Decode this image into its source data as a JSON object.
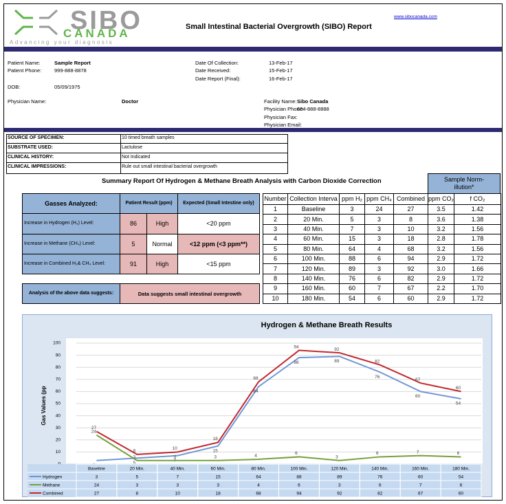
{
  "header": {
    "logo_name": "SIBO",
    "logo_subname": "CANADA",
    "tagline": "Advancing your diagnosis",
    "title": "Small Intestinal Bacterial Overgrowth (SIBO) Report",
    "url": "www.sibocanada.com"
  },
  "patient": {
    "name": {
      "label": "Patient Name:",
      "value": "Sample Report"
    },
    "phone": {
      "label": "Patient Phone:",
      "value": "999-888-8878"
    },
    "dob": {
      "label": "DOB:",
      "value": "05/09/1975"
    },
    "physician": {
      "label": "Physician Name:",
      "value": "Doctor"
    },
    "collection": {
      "label": "Date Of Collection:",
      "value": "13-Feb-17"
    },
    "received": {
      "label": "Date Received:",
      "value": "15-Feb-17"
    },
    "report": {
      "label": "Date Report (Final):",
      "value": "16-Feb-17"
    },
    "facility": {
      "label": "Facility Name:",
      "value": "Sibo Canada"
    },
    "physician_phone": {
      "label": "Physician Phone:",
      "value": "604-888-8888"
    },
    "physician_fax": {
      "label": "Physician Fax:"
    },
    "physician_email": {
      "label": "Physician Email:"
    }
  },
  "specimen": {
    "rows": [
      {
        "label": "SOURCE OF SPECIMEN:",
        "value": "10 timed breath samples"
      },
      {
        "label": "SUBSTRATE USED:",
        "value": "Lactulose"
      },
      {
        "label": "CLINICAL HISTORY:",
        "value": "Not Indicated"
      },
      {
        "label": "CLINICAL IMPRESSIONS:",
        "value": "Rule out small intestinal bacterial overgrowth"
      }
    ]
  },
  "summary": {
    "title": "Summary Report Of Hydrogen & Methane Breath Analysis with Carbon Dioxide Correction",
    "left": {
      "headers": [
        "Gasses Analyzed:",
        "Patient Result (ppm)",
        "Expected (Small Intestine only)"
      ],
      "rows": [
        {
          "label": "Increase in Hydrogen (H₂) Level:",
          "value": 86,
          "flag": "High",
          "expected": "<20 ppm"
        },
        {
          "label": "Increase in Methane (CH₄) Level:",
          "value": 5,
          "flag": "Normal",
          "expected": "<12 ppm (<3 ppm**)"
        },
        {
          "label": "Increase in Combined H₂& CH₄ Level:",
          "value": 91,
          "flag": "High",
          "expected": "<15 ppm"
        }
      ],
      "analysis": {
        "label": "Analysis of the above data suggests:",
        "result": "Data suggests small intestinal overgrowth"
      }
    },
    "right": {
      "sample_header": "Sample Norm-illution*",
      "headers": [
        "Number",
        "Collection Interva",
        "ppm H₂",
        "ppm CH₄",
        "Combined",
        "ppm CO₂",
        "f CO₂"
      ],
      "number": [
        1,
        2,
        3,
        4,
        5,
        6,
        7,
        8,
        9,
        10
      ],
      "co2": [
        "3.5",
        "3.6",
        "3.2",
        "2.8",
        "3.2",
        "2.9",
        "3.0",
        "2.9",
        "2.2",
        "2.9"
      ],
      "fco2": [
        "1.42",
        "1.38",
        "1.56",
        "1.78",
        "1.56",
        "1.72",
        "1.66",
        "1.72",
        "1.70",
        "1.72"
      ]
    }
  },
  "chart_data": {
    "type": "line",
    "title": "Hydrogen & Methane Breath Results",
    "y_label": "Gas Values (pp",
    "categories": [
      "Baseline",
      "20 Min.",
      "40 Min.",
      "60 Min.",
      "80 Min.",
      "100 Min.",
      "120 Min.",
      "140 Min.",
      "160 Min.",
      "180 Min."
    ],
    "series": [
      {
        "name": "Hydrogen",
        "color": "#7096d6",
        "values": [
          3,
          5,
          7,
          15,
          64,
          88,
          89,
          76,
          60,
          54
        ]
      },
      {
        "name": "Methane",
        "color": "#77a03a",
        "values": [
          24,
          3,
          3,
          3,
          4,
          6,
          3,
          6,
          7,
          6
        ]
      },
      {
        "name": "Combined",
        "color": "#c0282e",
        "values": [
          27,
          8,
          10,
          18,
          68,
          94,
          92,
          82,
          67,
          60
        ]
      }
    ],
    "ylim": [
      0,
      100
    ],
    "yticks": [
      0,
      10,
      20,
      30,
      40,
      50,
      60,
      70,
      80,
      90,
      100
    ],
    "grid": true
  }
}
